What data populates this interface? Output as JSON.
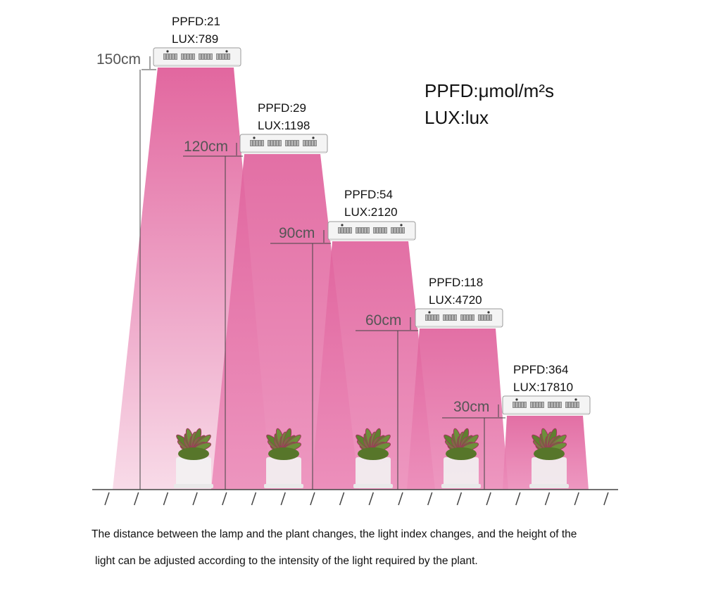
{
  "legend": {
    "ppfd_unit": "PPFD:μmol/m²s",
    "lux_unit": "LUX:lux"
  },
  "lamps": [
    {
      "height": "150cm",
      "ppfd": "PPFD:21",
      "lux": "LUX:789"
    },
    {
      "height": "120cm",
      "ppfd": "PPFD:29",
      "lux": "LUX:1198"
    },
    {
      "height": "90cm",
      "ppfd": "PPFD:54",
      "lux": "LUX:2120"
    },
    {
      "height": "60cm",
      "ppfd": "PPFD:118",
      "lux": "LUX:4720"
    },
    {
      "height": "30cm",
      "ppfd": "PPFD:364",
      "lux": "LUX:17810"
    }
  ],
  "caption": {
    "line1": "The distance between the lamp and the plant changes, the light index changes, and the height of the",
    "line2": "light can be adjusted according to the intensity of the light required by the plant."
  },
  "colors": {
    "beam": "#e36aa2",
    "beam_light": "#f6c6dc",
    "lamp_body": "#f4f4f4",
    "pot": "#f2f2f2",
    "leaf": "#6d8f3a",
    "leaf_tip": "#a0365c"
  }
}
